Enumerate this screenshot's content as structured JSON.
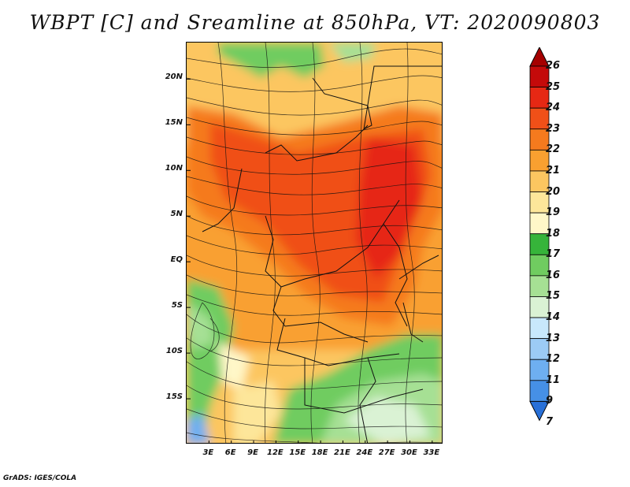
{
  "title": "WBPT [C] and Sreamline at 850hPa, VT: 2020090803",
  "credit": "GrADS: IGES/COLA",
  "axes": {
    "lat_labels": [
      {
        "text": "20N",
        "lat": 20
      },
      {
        "text": "15N",
        "lat": 15
      },
      {
        "text": "10N",
        "lat": 10
      },
      {
        "text": "5N",
        "lat": 5
      },
      {
        "text": "EQ",
        "lat": 0
      },
      {
        "text": "5S",
        "lat": -5
      },
      {
        "text": "10S",
        "lat": -10
      },
      {
        "text": "15S",
        "lat": -15
      }
    ],
    "lon_labels": [
      {
        "text": "3E",
        "lon": 3
      },
      {
        "text": "6E",
        "lon": 6
      },
      {
        "text": "9E",
        "lon": 9
      },
      {
        "text": "12E",
        "lon": 12
      },
      {
        "text": "15E",
        "lon": 15
      },
      {
        "text": "18E",
        "lon": 18
      },
      {
        "text": "21E",
        "lon": 21
      },
      {
        "text": "24E",
        "lon": 24
      },
      {
        "text": "27E",
        "lon": 27
      },
      {
        "text": "30E",
        "lon": 30
      },
      {
        "text": "33E",
        "lon": 33
      }
    ],
    "lon_range": [
      0,
      34.5
    ],
    "lat_range": [
      -20,
      24
    ]
  },
  "colorbar": {
    "labels": [
      "26",
      "25",
      "24",
      "23",
      "22",
      "21",
      "20",
      "19",
      "18",
      "17",
      "16",
      "15",
      "14",
      "13",
      "12",
      "11",
      "9",
      "7"
    ],
    "colors": [
      "#a50000",
      "#c40a0a",
      "#e62814",
      "#f05018",
      "#f57a1e",
      "#f9a030",
      "#fcc660",
      "#fde69a",
      "#fff7c8",
      "#36b43a",
      "#70cc60",
      "#a6e094",
      "#daf2d4",
      "#c8e8fc",
      "#9ccbf5",
      "#6eaff0",
      "#4690e6",
      "#2870d8"
    ]
  }
}
